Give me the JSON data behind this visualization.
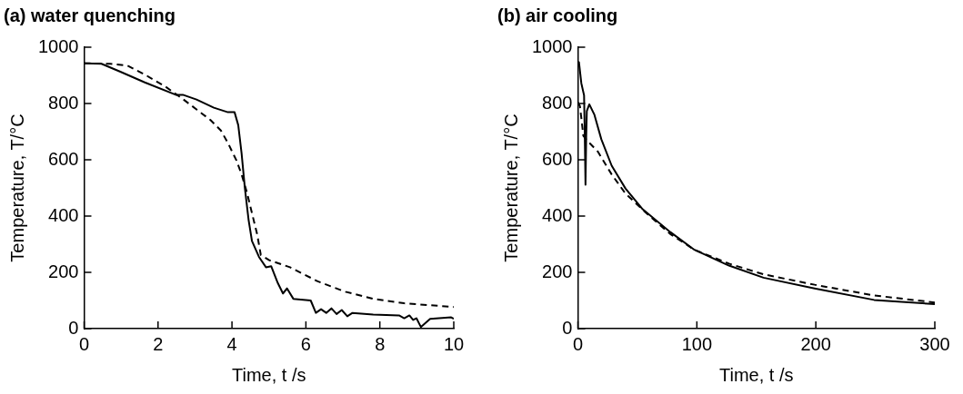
{
  "chart_data": [
    {
      "type": "line",
      "title": "(a) water quenching",
      "xlabel": "Time, t /s",
      "ylabel": "Temperature, T/°C",
      "xlim": [
        0,
        10
      ],
      "xticks": [
        0,
        2,
        4,
        6,
        8,
        10
      ],
      "ylim": [
        0,
        1000
      ],
      "yticks": [
        0,
        200,
        400,
        600,
        800,
        1000
      ],
      "grid": false,
      "legend": false,
      "marker": "none",
      "series": [
        {
          "color": "#000000",
          "line_style": "solid",
          "x": [
            0,
            0.47,
            0.98,
            1.64,
            2.48,
            2.67,
            3.04,
            3.51,
            3.89,
            4.07,
            4.17,
            4.26,
            4.35,
            4.45,
            4.54,
            4.73,
            4.92,
            5.06,
            5.24,
            5.38,
            5.49,
            5.66,
            6.13,
            6.27,
            6.41,
            6.55,
            6.69,
            6.83,
            6.97,
            7.12,
            7.26,
            7.82,
            8.52,
            8.66,
            8.8,
            8.9,
            8.99,
            9.11,
            9.36,
            9.93,
            10
          ],
          "values": [
            943,
            941,
            913,
            875,
            831,
            831,
            814,
            785,
            769,
            769,
            723,
            623,
            498,
            386,
            312,
            255,
            218,
            222,
            162,
            125,
            143,
            106,
            100,
            56,
            69,
            56,
            72,
            52,
            66,
            44,
            56,
            50,
            47,
            37,
            47,
            31,
            37,
            6,
            35,
            40,
            35
          ]
        },
        {
          "color": "#000000",
          "line_style": "dashed",
          "x": [
            0,
            0.7,
            1.17,
            1.64,
            2.2,
            2.67,
            3.04,
            3.42,
            3.7,
            3.89,
            4.12,
            4.26,
            4.4,
            4.54,
            4.68,
            4.78,
            5.01,
            5.57,
            6.32,
            7.07,
            7.82,
            8.66,
            10
          ],
          "values": [
            943,
            941,
            935,
            903,
            860,
            816,
            779,
            741,
            704,
            660,
            598,
            548,
            486,
            411,
            336,
            262,
            243,
            218,
            168,
            131,
            106,
            90,
            77
          ]
        }
      ]
    },
    {
      "type": "line",
      "title": "(b) air cooling",
      "xlabel": "Time, t /s",
      "ylabel": "Temperature, T/°C",
      "xlim": [
        0,
        300
      ],
      "xticks": [
        0,
        100,
        200,
        300
      ],
      "ylim": [
        0,
        1000
      ],
      "yticks": [
        0,
        200,
        400,
        600,
        800,
        1000
      ],
      "grid": false,
      "legend": false,
      "marker": "none",
      "series": [
        {
          "color": "#000000",
          "line_style": "solid",
          "x": [
            0,
            0.9,
            2.9,
            5.2,
            5.8,
            6.4,
            7,
            7.5,
            9.6,
            13.9,
            19.7,
            28.4,
            40,
            54.5,
            77.7,
            98,
            127,
            156,
            199,
            249,
            300
          ],
          "values": [
            947,
            947,
            872,
            829,
            685,
            511,
            685,
            773,
            797,
            760,
            673,
            579,
            498,
            424,
            343,
            280,
            224,
            181,
            143,
            102,
            87
          ]
        },
        {
          "color": "#000000",
          "line_style": "dashed",
          "x": [
            0,
            1.7,
            2.9,
            4.6,
            8.1,
            16.8,
            28.4,
            40,
            57.4,
            77.7,
            98,
            127,
            156,
            199,
            249,
            300
          ],
          "values": [
            804,
            791,
            748,
            685,
            667,
            629,
            548,
            480,
            411,
            336,
            280,
            231,
            193,
            156,
            118,
            93
          ]
        }
      ]
    }
  ]
}
